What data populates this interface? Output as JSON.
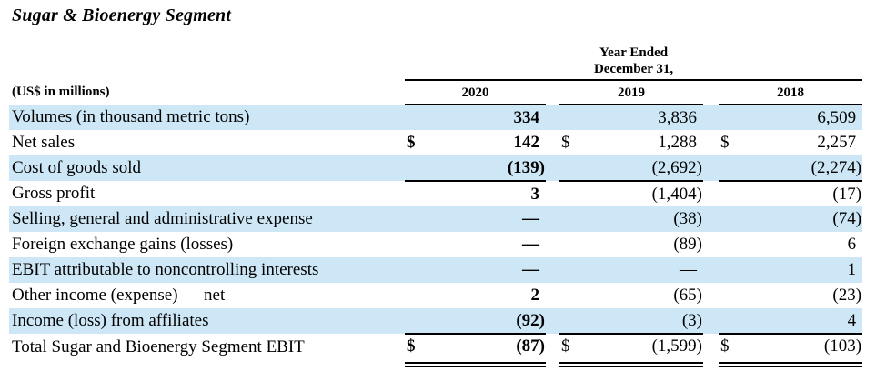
{
  "title": "Sugar & Bioenergy Segment",
  "colors": {
    "row_shade": "#cde7f6",
    "rule": "#000000",
    "text": "#000000"
  },
  "table": {
    "group_header": {
      "line1": "Year Ended",
      "line2": "December 31,"
    },
    "unit_label": "(US$ in millions)",
    "currency_symbol": "$",
    "years": [
      "2020",
      "2019",
      "2018"
    ],
    "rows": [
      {
        "label": "Volumes (in thousand metric tons)",
        "dollar": false,
        "values": [
          "334",
          "3,836",
          "6,509"
        ]
      },
      {
        "label": "Net sales",
        "dollar": true,
        "values": [
          "142",
          "1,288",
          "2,257"
        ]
      },
      {
        "label": "Cost of goods sold",
        "dollar": false,
        "values": [
          "(139)",
          "(2,692)",
          "(2,274)"
        ],
        "rule_below": true
      },
      {
        "label": "Gross profit",
        "dollar": false,
        "values": [
          "3",
          "(1,404)",
          "(17)"
        ]
      },
      {
        "label": "Selling, general and administrative expense",
        "dollar": false,
        "values": [
          "—",
          "(38)",
          "(74)"
        ]
      },
      {
        "label": "Foreign exchange gains (losses)",
        "dollar": false,
        "values": [
          "—",
          "(89)",
          "6"
        ]
      },
      {
        "label": "EBIT attributable to noncontrolling interests",
        "dollar": false,
        "values": [
          "—",
          "—",
          "1"
        ]
      },
      {
        "label": "Other income (expense) — net",
        "dollar": false,
        "values": [
          "2",
          "(65)",
          "(23)"
        ]
      },
      {
        "label": "Income (loss) from affiliates",
        "dollar": false,
        "values": [
          "(92)",
          "(3)",
          "4"
        ],
        "rule_below": true
      },
      {
        "label": "Total Sugar and Bioenergy Segment EBIT",
        "dollar": true,
        "values": [
          "(87)",
          "(1,599)",
          "(103)"
        ],
        "is_total": true
      }
    ]
  }
}
